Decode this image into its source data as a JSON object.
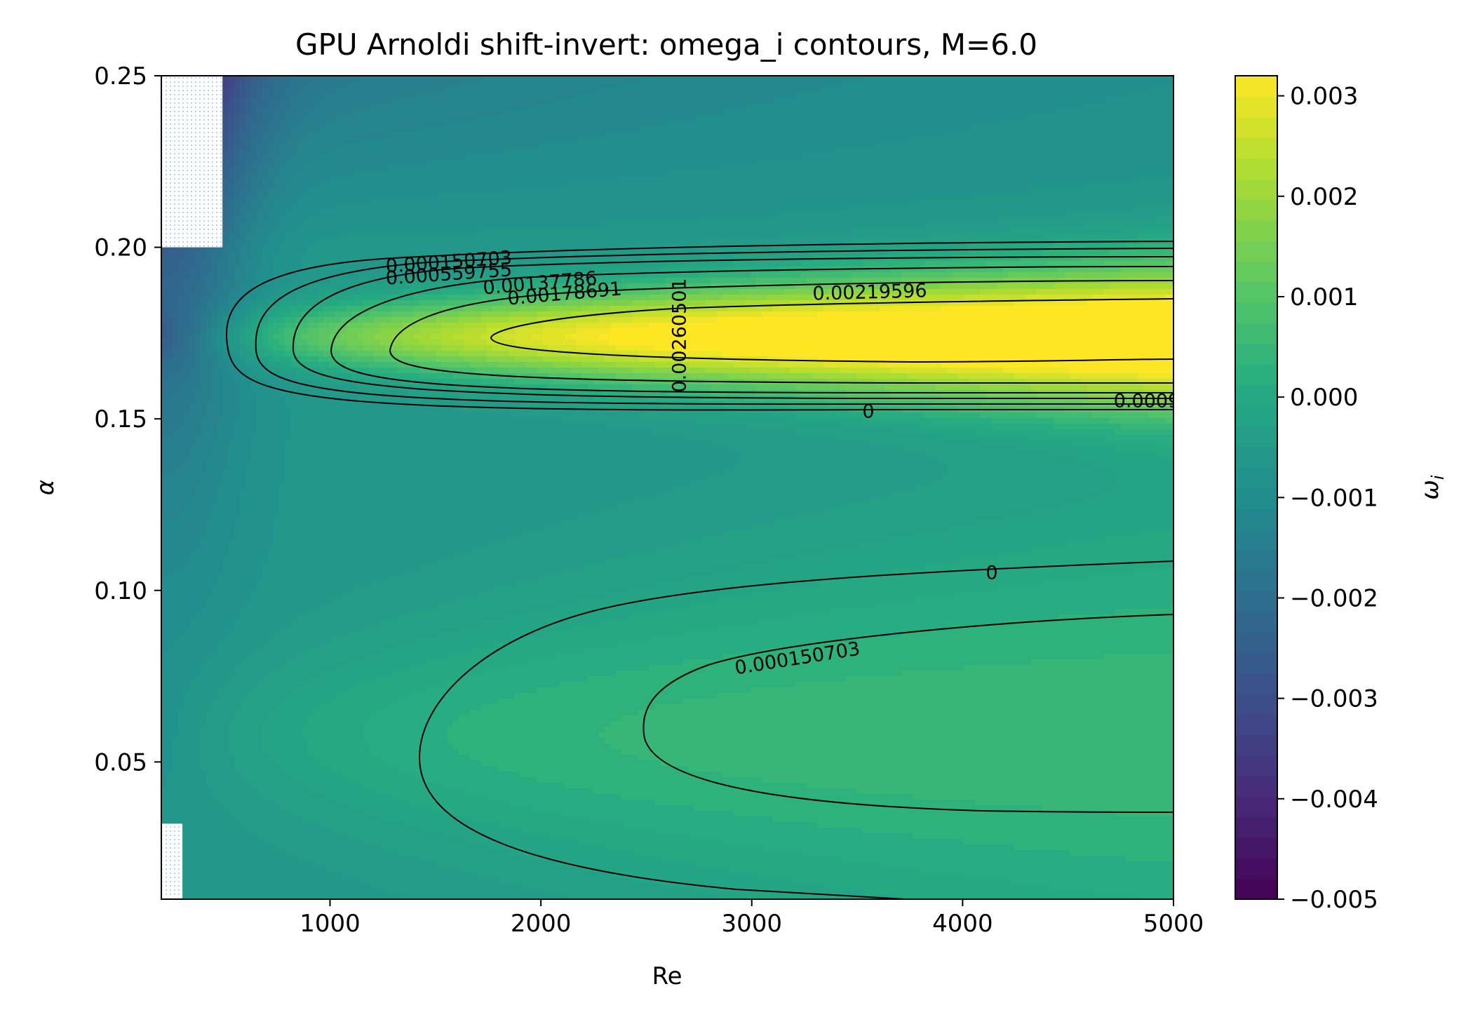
{
  "chart_data": {
    "type": "contour",
    "title": "GPU Arnoldi shift-invert: omega_i contours, M=6.0",
    "xlabel": "Re",
    "ylabel": "α",
    "xlim": [
      200,
      5000
    ],
    "ylim": [
      0.01,
      0.25
    ],
    "xticks": [
      1000,
      2000,
      3000,
      4000,
      5000
    ],
    "xtick_labels": [
      "1000",
      "2000",
      "3000",
      "4000",
      "5000"
    ],
    "yticks": [
      0.05,
      0.1,
      0.15,
      0.2,
      0.25
    ],
    "ytick_labels": [
      "0.05",
      "0.10",
      "0.15",
      "0.20",
      "0.25"
    ],
    "colorbar": {
      "label": "ω_i",
      "label_main": "ω",
      "label_sub": "i",
      "range": [
        -0.005,
        0.0032
      ],
      "ticks": [
        -0.005,
        -0.004,
        -0.003,
        -0.002,
        -0.001,
        0.0,
        0.001,
        0.002,
        0.003
      ],
      "tick_labels": [
        "−0.005",
        "−0.004",
        "−0.003",
        "−0.002",
        "−0.001",
        "0.000",
        "0.001",
        "0.002",
        "0.003"
      ],
      "colormap": "viridis"
    },
    "upper_peak": {
      "Re": 5000,
      "alpha": 0.174,
      "omega_i": 0.0031
    },
    "lower_peak": {
      "Re": 4400,
      "alpha": 0.058,
      "omega_i": 0.0005
    },
    "contour_levels": [
      {
        "level": 0,
        "label": "0"
      },
      {
        "level": 0.000150703,
        "label": "0.000150703"
      },
      {
        "level": 0.000559755,
        "label": "0.000559755"
      },
      {
        "level": 0.0009,
        "label": "0.0009"
      },
      {
        "level": 0.00137786,
        "label": "0.00137786"
      },
      {
        "level": 0.00178691,
        "label": "0.00178691"
      },
      {
        "level": 0.00219596,
        "label": "0.00219596"
      },
      {
        "level": 0.00260501,
        "label": "0.00260501"
      }
    ],
    "missing_regions": [
      {
        "Re": [
          200,
          490
        ],
        "alpha": [
          0.2,
          0.25
        ]
      },
      {
        "Re": [
          200,
          300
        ],
        "alpha": [
          0.01,
          0.032
        ]
      }
    ]
  }
}
